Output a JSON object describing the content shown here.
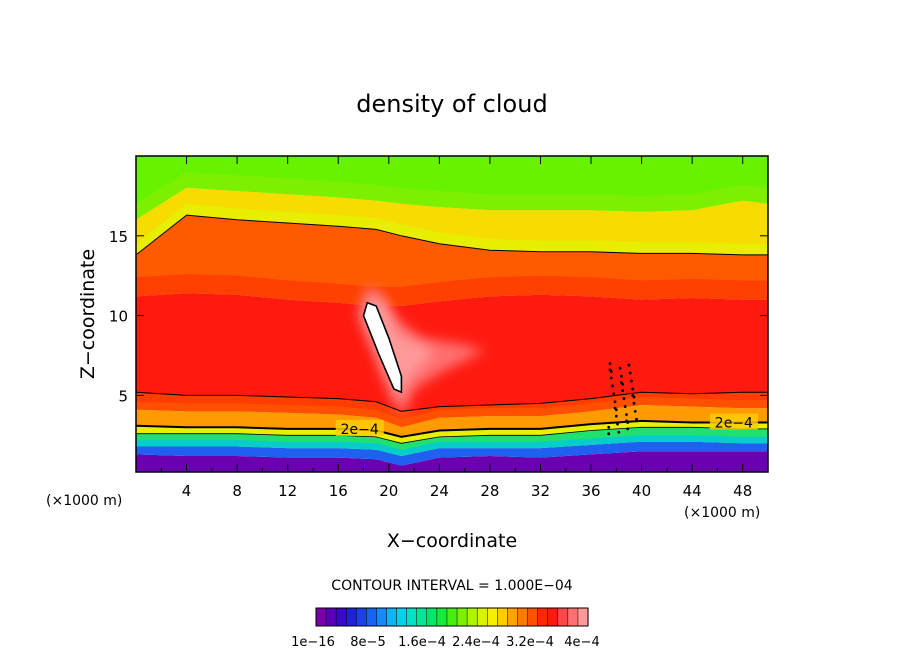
{
  "chart_data": {
    "type": "heatmap",
    "title": "density of cloud",
    "xlabel": "X−coordinate",
    "ylabel": "Z−coordinate",
    "x_unit_label": "(×1000 m)",
    "z_unit_label": "(×1000 m)",
    "xlim": [
      0,
      50
    ],
    "ylim": [
      0.2,
      20
    ],
    "x_ticks": [
      4,
      8,
      12,
      16,
      20,
      24,
      28,
      32,
      36,
      40,
      44,
      48
    ],
    "y_ticks": [
      5,
      10,
      15
    ],
    "contour_interval_text": "CONTOUR INTERVAL = 1.000E−04",
    "contour_label": "2e−4",
    "colorbar": {
      "labels": [
        "1e−16",
        "8e−5",
        "1.6e−4",
        "2.4e−4",
        "3.2e−4",
        "4e−4"
      ],
      "colors": [
        "#7a00a8",
        "#5800b8",
        "#3a08c8",
        "#2020dc",
        "#1c40ea",
        "#1a62f4",
        "#1888fa",
        "#10b4f8",
        "#00d4e8",
        "#00e2c0",
        "#00e696",
        "#00e86a",
        "#18ea3c",
        "#48ee12",
        "#7cf000",
        "#acf400",
        "#d8f400",
        "#f8ee00",
        "#ffcc00",
        "#ffa400",
        "#ff7a00",
        "#ff5200",
        "#ff2800",
        "#ff1a10",
        "#ff4848",
        "#ff7070",
        "#ff9898"
      ]
    },
    "bands_description_units": "density",
    "columns_x": [
      0,
      4,
      8,
      12,
      16,
      19,
      21,
      24,
      28,
      32,
      36,
      40,
      44,
      48,
      50
    ],
    "level_boundaries_z": {
      "surface": [
        1.3,
        1.2,
        1.2,
        1.1,
        1.1,
        1.0,
        0.6,
        1.1,
        1.2,
        1.1,
        1.3,
        1.5,
        1.5,
        1.5,
        1.5
      ],
      "density_8e-5": [
        1.8,
        1.8,
        1.8,
        1.7,
        1.7,
        1.6,
        1.2,
        1.7,
        1.7,
        1.7,
        1.9,
        2.1,
        2.1,
        2.0,
        2.0
      ],
      "density_1.6e-4": [
        2.6,
        2.6,
        2.6,
        2.5,
        2.5,
        2.4,
        2.0,
        2.4,
        2.5,
        2.5,
        2.8,
        3.0,
        3.0,
        2.9,
        2.9
      ],
      "density_2e-4": [
        3.1,
        3.0,
        3.0,
        2.9,
        2.9,
        2.8,
        2.4,
        2.8,
        2.9,
        2.9,
        3.2,
        3.4,
        3.3,
        3.3,
        3.3
      ],
      "density_2.4e-4": [
        4.1,
        4.0,
        4.0,
        3.9,
        3.8,
        3.6,
        3.0,
        3.6,
        3.7,
        3.7,
        4.0,
        4.4,
        4.3,
        4.2,
        4.2
      ],
      "density_3.2e-4": [
        5.2,
        5.0,
        5.0,
        4.9,
        4.8,
        4.6,
        4.0,
        4.3,
        4.4,
        4.5,
        4.8,
        5.2,
        5.1,
        5.2,
        5.2
      ],
      "upper_3.2e-4": [
        11.2,
        11.4,
        11.3,
        11.0,
        10.8,
        10.6,
        10.6,
        10.9,
        11.2,
        11.3,
        11.2,
        11.0,
        11.1,
        11.0,
        11.0
      ],
      "upper_2.4e-4": [
        13.8,
        16.3,
        16.0,
        15.8,
        15.6,
        15.4,
        15.0,
        14.5,
        14.1,
        14.0,
        14.0,
        13.9,
        13.9,
        13.8,
        13.8
      ],
      "upper_1.6e-4": [
        16.0,
        18.0,
        17.8,
        17.6,
        17.4,
        17.2,
        17.0,
        16.8,
        16.6,
        16.6,
        16.6,
        16.5,
        16.6,
        17.2,
        17.0
      ]
    }
  }
}
